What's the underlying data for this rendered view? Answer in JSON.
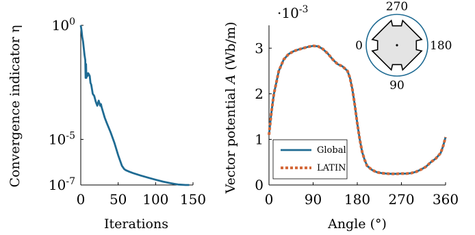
{
  "chart_data": [
    {
      "type": "line",
      "xlabel": "Iterations",
      "ylabel": "Convergence indicator η",
      "ylog": true,
      "xlim": [
        0,
        150
      ],
      "ylim": [
        1e-07,
        1
      ],
      "xticks": [
        0,
        50,
        100,
        150
      ],
      "xtick_labels": [
        "0",
        "50",
        "100",
        "150"
      ],
      "yticks": [
        1e-07,
        1e-05,
        1
      ],
      "ytick_labels": [
        "10^{-7}",
        "10^{-5}",
        "10^{0}"
      ],
      "grid": false,
      "legend": "none",
      "color": "#1f6b93",
      "series": [
        {
          "x": [
            0,
            1,
            2,
            3,
            4,
            5,
            6,
            6.5,
            7,
            7.5,
            8,
            9,
            10,
            11,
            12,
            13,
            14,
            16,
            18,
            20,
            22,
            24,
            26,
            27,
            28,
            30,
            32,
            35,
            40,
            45,
            50,
            55,
            58,
            60,
            65,
            70,
            80,
            90,
            100,
            110,
            120,
            130,
            140,
            145
          ],
          "y": [
            1,
            0.6,
            0.3,
            0.2,
            0.1,
            0.05,
            0.03,
            0.005,
            0.02,
            0.005,
            0.008,
            0.006,
            0.008,
            0.007,
            0.006,
            0.003,
            0.0025,
            0.001,
            0.0008,
            0.00045,
            0.0003,
            0.0005,
            0.0003,
            0.00035,
            0.00025,
            0.00015,
            9e-05,
            5e-05,
            2e-05,
            7e-06,
            2e-06,
            7e-07,
            5e-07,
            4.5e-07,
            3.8e-07,
            3.3e-07,
            2.6e-07,
            2.1e-07,
            1.7e-07,
            1.4e-07,
            1.2e-07,
            1.05e-07,
            1e-07,
            1e-07
          ]
        }
      ]
    },
    {
      "type": "line",
      "xlabel": "Angle (°)",
      "ylabel": "Vector potential A (Wb/m)",
      "scale_label": "·10^{-3}",
      "xlim": [
        0,
        360
      ],
      "ylim": [
        0,
        3.5
      ],
      "xticks": [
        0,
        90,
        180,
        270,
        360
      ],
      "yticks": [
        0,
        1,
        2,
        3
      ],
      "grid": false,
      "legend": "bottom-left",
      "series": [
        {
          "name": "Global",
          "color": "#1f6b93",
          "style": "solid",
          "x": [
            0,
            5,
            10,
            15,
            20,
            30,
            40,
            50,
            60,
            70,
            80,
            90,
            100,
            110,
            120,
            130,
            140,
            150,
            160,
            165,
            170,
            175,
            180,
            185,
            190,
            195,
            200,
            210,
            220,
            230,
            240,
            250,
            260,
            270,
            280,
            290,
            300,
            310,
            320,
            330,
            340,
            350,
            355,
            360
          ],
          "y": [
            1.1,
            1.6,
            2.0,
            2.25,
            2.5,
            2.75,
            2.87,
            2.93,
            2.97,
            3.0,
            3.03,
            3.05,
            3.04,
            2.98,
            2.88,
            2.75,
            2.65,
            2.6,
            2.5,
            2.35,
            2.1,
            1.75,
            1.35,
            1.0,
            0.72,
            0.55,
            0.42,
            0.33,
            0.28,
            0.26,
            0.25,
            0.245,
            0.245,
            0.25,
            0.25,
            0.26,
            0.29,
            0.34,
            0.4,
            0.5,
            0.58,
            0.7,
            0.85,
            1.05
          ]
        },
        {
          "name": "LATIN",
          "color": "#d4693a",
          "style": "dotted",
          "x": [
            0,
            5,
            10,
            15,
            20,
            30,
            40,
            50,
            60,
            70,
            80,
            90,
            100,
            110,
            120,
            130,
            140,
            150,
            160,
            165,
            170,
            175,
            180,
            185,
            190,
            195,
            200,
            210,
            220,
            230,
            240,
            250,
            260,
            270,
            280,
            290,
            300,
            310,
            320,
            330,
            340,
            350,
            355,
            360
          ],
          "y": [
            1.1,
            1.6,
            2.0,
            2.25,
            2.5,
            2.75,
            2.87,
            2.93,
            2.97,
            3.0,
            3.03,
            3.05,
            3.04,
            2.98,
            2.88,
            2.75,
            2.65,
            2.6,
            2.5,
            2.35,
            2.1,
            1.75,
            1.35,
            1.0,
            0.72,
            0.55,
            0.42,
            0.33,
            0.28,
            0.26,
            0.25,
            0.245,
            0.245,
            0.25,
            0.25,
            0.26,
            0.29,
            0.34,
            0.4,
            0.5,
            0.58,
            0.7,
            0.85,
            1.05
          ]
        }
      ],
      "inset": {
        "type": "polar-diagram",
        "angle_labels": [
          "270",
          "0",
          "180",
          "90"
        ],
        "outer_color": "#1f6b93"
      }
    }
  ]
}
